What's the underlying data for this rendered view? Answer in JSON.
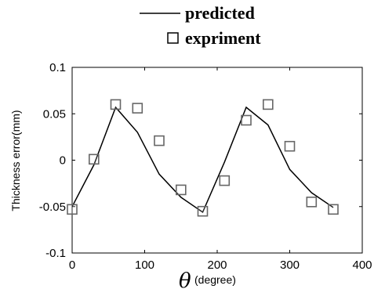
{
  "chart_data": {
    "type": "line",
    "title": "",
    "xlabel_symbol": "θ",
    "xlabel_unit": "(degree)",
    "ylabel": "Thickness error(mm)",
    "xlim": [
      0,
      400
    ],
    "ylim": [
      -0.1,
      0.1
    ],
    "x_ticks": [
      0,
      100,
      200,
      300,
      400
    ],
    "x_tick_labels": [
      "0",
      "100",
      "200",
      "300",
      "400"
    ],
    "y_ticks": [
      -0.1,
      -0.05,
      0,
      0.05,
      0.1
    ],
    "y_tick_labels": [
      "-0.1",
      "-0.05",
      "0",
      "0.05",
      "0.1"
    ],
    "grid": false,
    "legend_position": "top",
    "series": [
      {
        "name": "predicted",
        "style": "line",
        "color": "#000000",
        "x": [
          0,
          30,
          60,
          90,
          120,
          150,
          180,
          210,
          240,
          270,
          300,
          330,
          360
        ],
        "y": [
          -0.05,
          -0.005,
          0.057,
          0.03,
          -0.015,
          -0.04,
          -0.056,
          -0.002,
          0.057,
          0.038,
          -0.01,
          -0.035,
          -0.051
        ]
      },
      {
        "name": "expriment",
        "style": "marker-square",
        "color": "#666666",
        "x": [
          0,
          30,
          60,
          90,
          120,
          150,
          180,
          210,
          240,
          270,
          300,
          330,
          360
        ],
        "y": [
          -0.053,
          0.001,
          0.06,
          0.056,
          0.021,
          -0.032,
          -0.055,
          -0.022,
          0.043,
          0.06,
          0.015,
          -0.045,
          -0.053
        ]
      }
    ]
  }
}
